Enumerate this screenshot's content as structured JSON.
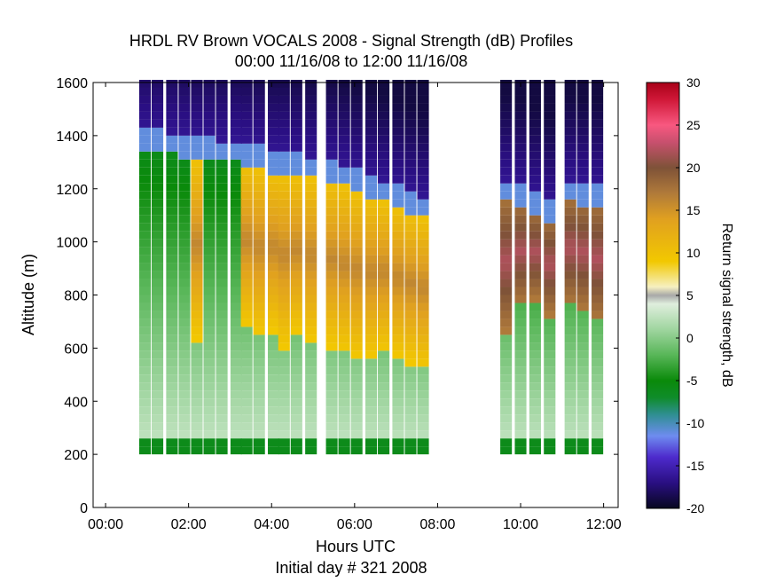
{
  "chart_data": {
    "type": "heatmap",
    "title": "HRDL RV Brown VOCALS 2008 - Signal Strength (dB) Profiles",
    "subtitle": "00:00 11/16/08 to 12:00 11/16/08",
    "xlabel": "Hours UTC",
    "xlabel2": "Initial day # 321  2008",
    "ylabel": "Altitude (m)",
    "xlim": [
      -0.3,
      12.35
    ],
    "ylim": [
      0,
      1600
    ],
    "xticks": [
      0,
      2,
      4,
      6,
      8,
      10,
      12
    ],
    "xtick_labels": [
      "00:00",
      "02:00",
      "04:00",
      "06:00",
      "08:00",
      "10:00",
      "12:00"
    ],
    "yticks": [
      0,
      200,
      400,
      600,
      800,
      1000,
      1200,
      1400,
      1600
    ],
    "ytick_labels": [
      "0",
      "200",
      "400",
      "600",
      "800",
      "1000",
      "1200",
      "1400",
      "1600"
    ],
    "colorbar": {
      "label": "Return signal strength, dB",
      "range": [
        -20,
        30
      ],
      "ticks": [
        30,
        25,
        20,
        15,
        10,
        5,
        0,
        -5,
        -10,
        -15,
        -20
      ],
      "stops": [
        {
          "v": -20,
          "c": "#070720"
        },
        {
          "v": -17,
          "c": "#2a0f82"
        },
        {
          "v": -14,
          "c": "#4d2acc"
        },
        {
          "v": -11.5,
          "c": "#6e8cf0"
        },
        {
          "v": -9,
          "c": "#2f8f92"
        },
        {
          "v": -7,
          "c": "#0f8c2a"
        },
        {
          "v": -5,
          "c": "#0a8a0a"
        },
        {
          "v": -2,
          "c": "#58b658"
        },
        {
          "v": 1,
          "c": "#9fd59f"
        },
        {
          "v": 4,
          "c": "#dfeedd"
        },
        {
          "v": 5,
          "c": "#a8a8a8"
        },
        {
          "v": 6,
          "c": "#f6f0c0"
        },
        {
          "v": 9,
          "c": "#f2c800"
        },
        {
          "v": 14,
          "c": "#e0a020"
        },
        {
          "v": 17,
          "c": "#b07a3a"
        },
        {
          "v": 20,
          "c": "#7e5238"
        },
        {
          "v": 23,
          "c": "#c8506e"
        },
        {
          "v": 25,
          "c": "#f85880"
        },
        {
          "v": 28,
          "c": "#d01838"
        },
        {
          "v": 30,
          "c": "#a80018"
        }
      ]
    },
    "profile_times": [
      0.95,
      1.25,
      1.6,
      1.9,
      2.2,
      2.5,
      2.8,
      3.15,
      3.4,
      3.7,
      4.05,
      4.3,
      4.6,
      4.95,
      5.45,
      5.75,
      6.05,
      6.4,
      6.7,
      7.05,
      7.35,
      7.65,
      9.65,
      10.0,
      10.35,
      10.7,
      11.2,
      11.5,
      11.85
    ],
    "profile_min_altitude": 200,
    "profiles": [
      {
        "cloud_base": null,
        "cloud_top": 1390
      },
      {
        "cloud_base": null,
        "cloud_top": 1380
      },
      {
        "cloud_base": null,
        "cloud_top": 1370
      },
      {
        "cloud_base": null,
        "cloud_top": 1360
      },
      {
        "cloud_base": 630,
        "cloud_top": 1350
      },
      {
        "cloud_base": null,
        "cloud_top": 1350
      },
      {
        "cloud_base": null,
        "cloud_top": 1340
      },
      {
        "cloud_base": null,
        "cloud_top": 1340
      },
      {
        "cloud_base": 680,
        "cloud_top": 1330
      },
      {
        "cloud_base": 640,
        "cloud_top": 1320
      },
      {
        "cloud_base": 660,
        "cloud_top": 1300
      },
      {
        "cloud_base": 600,
        "cloud_top": 1300
      },
      {
        "cloud_base": 650,
        "cloud_top": 1290
      },
      {
        "cloud_base": 620,
        "cloud_top": 1280
      },
      {
        "cloud_base": 600,
        "cloud_top": 1270
      },
      {
        "cloud_base": 580,
        "cloud_top": 1250
      },
      {
        "cloud_base": 560,
        "cloud_top": 1230
      },
      {
        "cloud_base": 560,
        "cloud_top": 1210
      },
      {
        "cloud_base": 580,
        "cloud_top": 1190
      },
      {
        "cloud_base": 560,
        "cloud_top": 1170
      },
      {
        "cloud_base": 540,
        "cloud_top": 1150
      },
      {
        "cloud_base": 520,
        "cloud_top": 1130
      },
      {
        "cloud_base": 660,
        "cloud_top": 1190
      },
      {
        "cloud_base": 760,
        "cloud_top": 1170
      },
      {
        "cloud_base": 780,
        "cloud_top": 1140
      },
      {
        "cloud_base": 720,
        "cloud_top": 1110
      },
      {
        "cloud_base": 760,
        "cloud_top": 1190
      },
      {
        "cloud_base": 740,
        "cloud_top": 1180
      },
      {
        "cloud_base": 700,
        "cloud_top": 1170
      }
    ]
  }
}
